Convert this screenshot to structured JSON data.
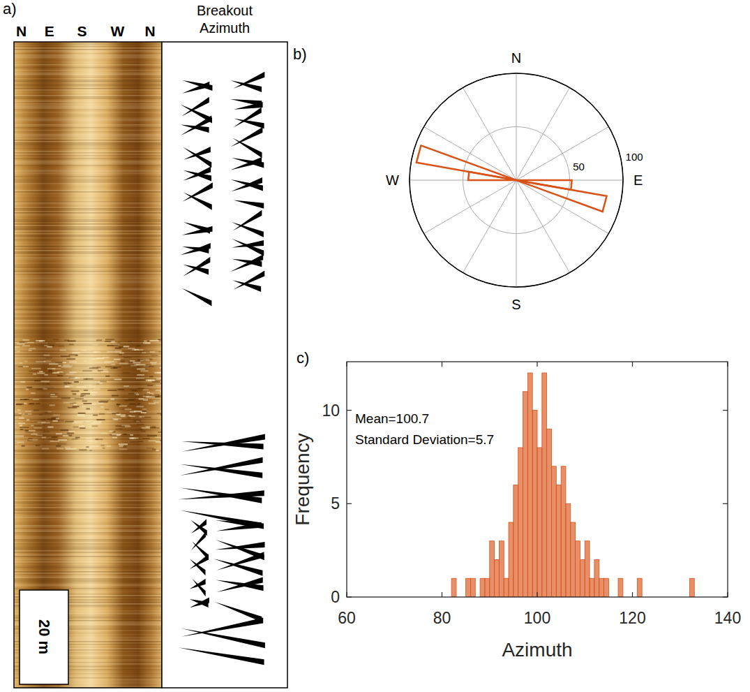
{
  "image_log": {
    "panel": "a)",
    "compass_labels": [
      "N",
      "E",
      "S",
      "W",
      "N"
    ],
    "track_title": "Breakout Azimuth",
    "scale_bar": "20 m"
  },
  "chart_data": [
    {
      "type": "rose",
      "panel": "b)",
      "bins": [
        0,
        10,
        20,
        30,
        40,
        50,
        60,
        70,
        80,
        90,
        100,
        110,
        120,
        130,
        140,
        150,
        160,
        170,
        180,
        190,
        200,
        210,
        220,
        230,
        240,
        250,
        260,
        270,
        280,
        290,
        300,
        310,
        320,
        330,
        340,
        350,
        360
      ],
      "values": [
        0,
        0,
        0,
        0,
        0,
        0,
        0,
        0,
        0,
        52,
        86,
        0,
        0,
        0,
        0,
        0,
        0,
        0,
        0,
        0,
        0,
        0,
        0,
        0,
        0,
        0,
        0,
        45,
        95,
        0,
        0,
        0,
        0,
        0,
        0,
        0
      ],
      "color": "#d95319",
      "rlim": [
        0,
        100
      ],
      "rticks": [
        50,
        100
      ],
      "thetaticks": [
        {
          "value": 0,
          "label": "N"
        },
        {
          "value": 90,
          "label": "E"
        },
        {
          "value": 180,
          "label": "S"
        },
        {
          "value": 270,
          "label": "W"
        }
      ],
      "grid": true
    },
    {
      "type": "histogram",
      "panel": "c)",
      "bins": [
        82,
        83,
        84,
        85,
        86,
        87,
        88,
        89,
        90,
        91,
        92,
        93,
        94,
        95,
        96,
        97,
        98,
        99,
        100,
        101,
        102,
        103,
        104,
        105,
        106,
        107,
        108,
        109,
        110,
        111,
        112,
        113,
        114,
        115,
        116,
        117,
        118,
        119,
        120,
        121,
        122,
        123,
        124,
        125,
        126,
        127,
        128,
        129,
        130,
        131,
        132,
        133
      ],
      "values": [
        1,
        0,
        0,
        1,
        1,
        0,
        1,
        1,
        3,
        2,
        3,
        1,
        4,
        6,
        8,
        11,
        12,
        10,
        8,
        12,
        9,
        7,
        6,
        7,
        5,
        4,
        3,
        2,
        3,
        1,
        2,
        1,
        1,
        0,
        0,
        1,
        0,
        0,
        0,
        1,
        0,
        0,
        0,
        0,
        0,
        0,
        0,
        0,
        0,
        0,
        1
      ],
      "color": "#d95319",
      "xlim": [
        60,
        140
      ],
      "xticks": [
        60,
        80,
        100,
        120,
        140
      ],
      "ylim": [
        0,
        12.6
      ],
      "yticks": [
        0,
        5,
        10
      ],
      "x_label": "Azimuth",
      "y_label": "Frequency",
      "annotations": [
        "Mean=100.7",
        "Standard Deviation=5.7"
      ]
    }
  ]
}
